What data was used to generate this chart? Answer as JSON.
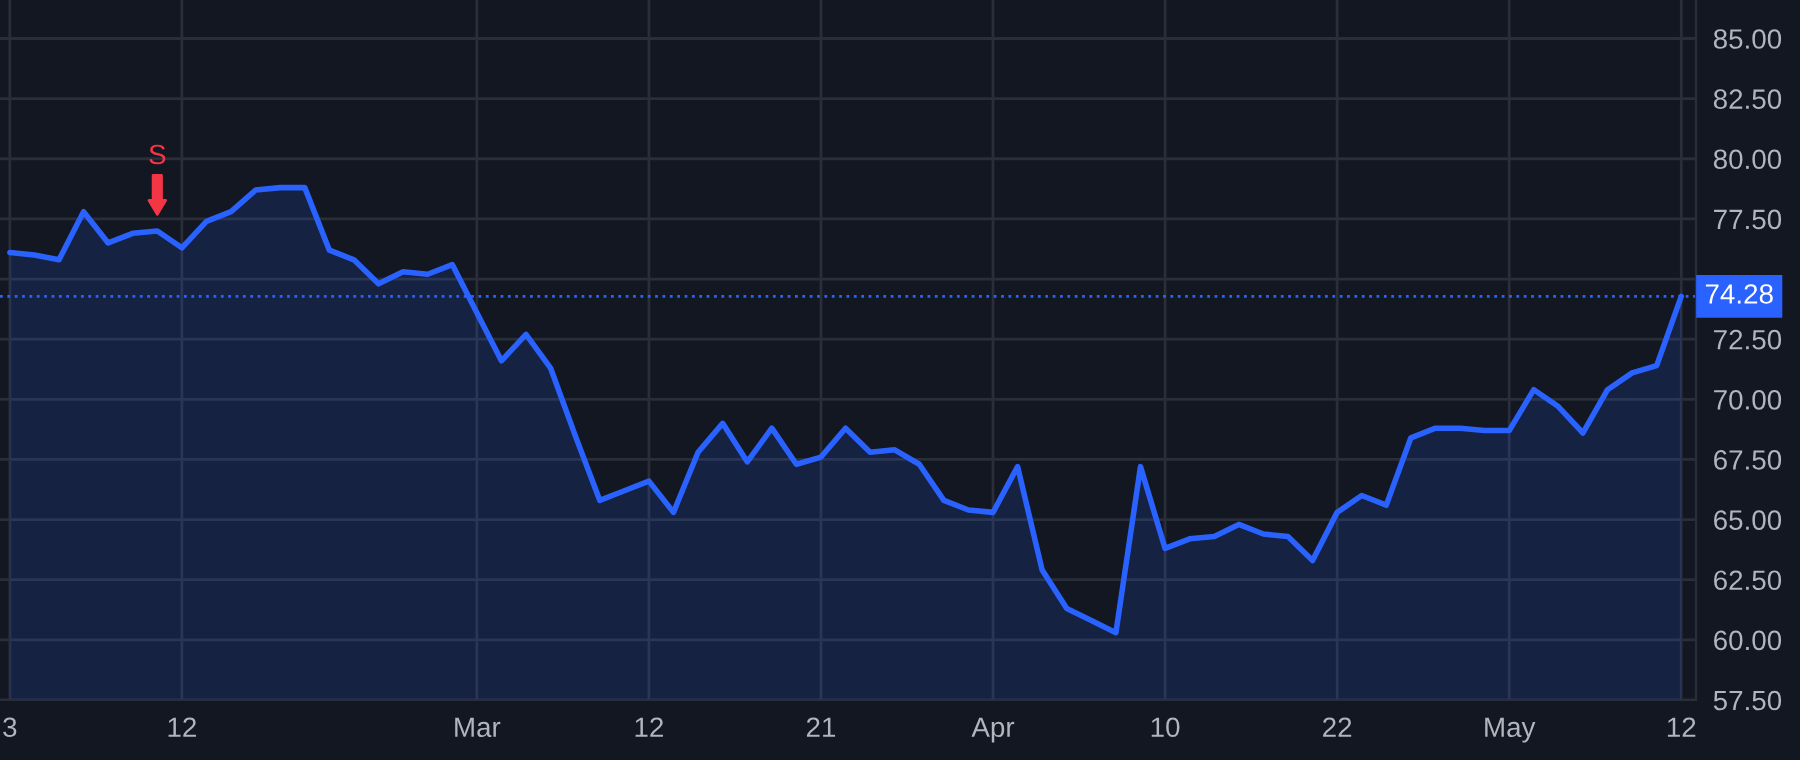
{
  "chart_data": {
    "type": "area",
    "categories": [
      "3",
      null,
      null,
      null,
      null,
      null,
      null,
      "12",
      null,
      null,
      null,
      null,
      null,
      null,
      null,
      null,
      null,
      null,
      null,
      "Mar",
      null,
      null,
      null,
      null,
      null,
      null,
      "12",
      null,
      null,
      null,
      null,
      null,
      null,
      "21",
      null,
      null,
      null,
      null,
      null,
      null,
      "Apr",
      null,
      null,
      null,
      null,
      null,
      null,
      "10",
      null,
      null,
      null,
      null,
      null,
      null,
      "22",
      null,
      null,
      null,
      null,
      null,
      null,
      "May",
      null,
      null,
      null,
      null,
      null,
      null,
      "12"
    ],
    "series": [
      {
        "color": "#2962ff",
        "values": [
          76.1,
          76.0,
          75.8,
          77.8,
          76.5,
          76.9,
          77.0,
          76.3,
          77.4,
          77.8,
          78.7,
          78.8,
          78.8,
          76.2,
          75.8,
          74.8,
          75.3,
          75.2,
          75.6,
          73.6,
          71.6,
          72.7,
          71.3,
          68.5,
          65.8,
          66.2,
          66.6,
          65.3,
          67.8,
          69.0,
          67.4,
          68.8,
          67.3,
          67.6,
          68.8,
          67.8,
          67.9,
          67.3,
          65.8,
          65.4,
          65.3,
          67.2,
          62.9,
          61.3,
          60.8,
          60.3,
          67.2,
          63.8,
          64.2,
          64.3,
          64.8,
          64.4,
          64.3,
          63.3,
          65.3,
          66.0,
          65.6,
          68.4,
          68.8,
          68.8,
          68.7,
          68.7,
          70.4,
          69.7,
          68.6,
          70.4,
          71.1,
          71.4,
          74.28
        ]
      }
    ],
    "ylim": [
      57.5,
      86.6
    ],
    "yticks": [
      {
        "value": 57.5,
        "label": "57.50"
      },
      {
        "value": 60,
        "label": "60.00"
      },
      {
        "value": 62.5,
        "label": "62.50"
      },
      {
        "value": 65,
        "label": "65.00"
      },
      {
        "value": 67.5,
        "label": "67.50"
      },
      {
        "value": 70,
        "label": "70.00"
      },
      {
        "value": 72.5,
        "label": "72.50"
      },
      {
        "value": 75,
        "label": null
      },
      {
        "value": 77.5,
        "label": "77.50"
      },
      {
        "value": 80,
        "label": "80.00"
      },
      {
        "value": 82.5,
        "label": "82.50"
      },
      {
        "value": 85,
        "label": "85.00"
      }
    ],
    "ref_lines": [
      {
        "axis": "y",
        "value": 74.28,
        "label": "74.28",
        "color": "#2962ff",
        "line_style": "dotted"
      }
    ],
    "annotations": [
      {
        "text": "S",
        "y": 77.0
      }
    ],
    "grid": true,
    "line_style": "solid"
  }
}
